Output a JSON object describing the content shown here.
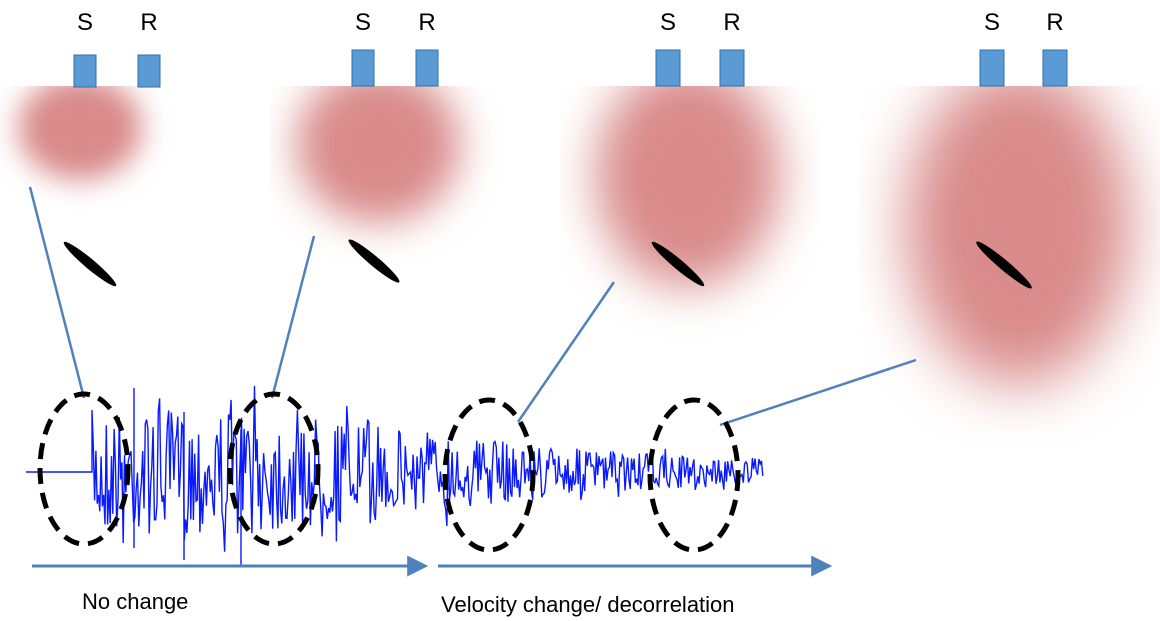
{
  "panels": [
    {
      "source_label": "S",
      "receiver_label": "R"
    },
    {
      "source_label": "S",
      "receiver_label": "R"
    },
    {
      "source_label": "S",
      "receiver_label": "R"
    },
    {
      "source_label": "S",
      "receiver_label": "R"
    }
  ],
  "captions": {
    "left": "No change",
    "right": "Velocity change/ decorrelation"
  },
  "colors": {
    "transducer": "#5b9bd5",
    "transducer_edge": "#2e6fb0",
    "diffusion_halo": "#d98a8a",
    "waveform": "#0a1aff",
    "connector": "#4f81bd",
    "arrow": "#4f81bd",
    "scatterer": "#000000",
    "window_ellipse": "#000000"
  }
}
